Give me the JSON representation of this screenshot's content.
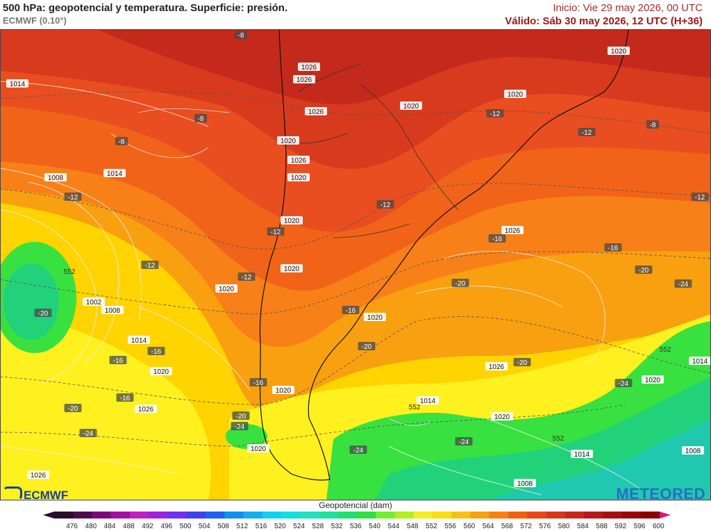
{
  "header": {
    "title": "500 hPa: geopotencial y temperatura. Superficie: presión.",
    "model": "ECMWF (0.10°)",
    "init": "Inicio: Vie 29 may 2026, 00 UTC",
    "valid": "Válido: Sáb 30 may 2026, 12 UTC (H+36)"
  },
  "colorbar": {
    "title": "Geopotencial (dam)",
    "ticks": [
      "476",
      "480",
      "484",
      "488",
      "492",
      "496",
      "500",
      "504",
      "508",
      "512",
      "516",
      "520",
      "524",
      "528",
      "532",
      "536",
      "540",
      "544",
      "548",
      "552",
      "556",
      "560",
      "564",
      "568",
      "572",
      "576",
      "580",
      "584",
      "588",
      "592",
      "596",
      "600"
    ],
    "colors": [
      "#2a0d2d",
      "#4d0a4d",
      "#7a0a7a",
      "#a010a0",
      "#c020c0",
      "#a020e0",
      "#7030f0",
      "#4040f0",
      "#2060f0",
      "#1090f0",
      "#10b0f0",
      "#10d0f0",
      "#10e0e0",
      "#20e0c0",
      "#20e0a0",
      "#20e070",
      "#30e040",
      "#70f030",
      "#b0f020",
      "#f0f020",
      "#f8e010",
      "#f8c010",
      "#f8a010",
      "#f88010",
      "#f06010",
      "#e84818",
      "#d83818",
      "#c82818",
      "#b81818",
      "#a81010",
      "#980808",
      "#880000"
    ]
  },
  "logos": {
    "left": "ECMWF",
    "right": "METEORED"
  },
  "pressure_labels": [
    {
      "text": "1014"
    },
    {
      "text": "1026"
    },
    {
      "text": "1026"
    },
    {
      "text": "1026"
    },
    {
      "text": "1020"
    },
    {
      "text": "1020"
    },
    {
      "text": "1020"
    },
    {
      "text": "1020"
    },
    {
      "text": "1026"
    },
    {
      "text": "1020"
    },
    {
      "text": "1014"
    },
    {
      "text": "1008"
    },
    {
      "text": "1020"
    },
    {
      "text": "1020"
    },
    {
      "text": "1020"
    },
    {
      "text": "1026"
    },
    {
      "text": "1002"
    },
    {
      "text": "1008"
    },
    {
      "text": "1014"
    },
    {
      "text": "1020"
    },
    {
      "text": "1026"
    },
    {
      "text": "1020"
    },
    {
      "text": "1026"
    },
    {
      "text": "1020"
    },
    {
      "text": "1014"
    },
    {
      "text": "1020"
    },
    {
      "text": "1020"
    },
    {
      "text": "1014"
    },
    {
      "text": "1008"
    },
    {
      "text": "1026"
    },
    {
      "text": "1020"
    },
    {
      "text": "1014"
    },
    {
      "text": "1008"
    }
  ],
  "temperature_labels": [
    {
      "text": "-8"
    },
    {
      "text": "-8"
    },
    {
      "text": "-8"
    },
    {
      "text": "-8"
    },
    {
      "text": "-12"
    },
    {
      "text": "-12"
    },
    {
      "text": "-12"
    },
    {
      "text": "-12"
    },
    {
      "text": "-12"
    },
    {
      "text": "-12"
    },
    {
      "text": "-12"
    },
    {
      "text": "-12"
    },
    {
      "text": "-16"
    },
    {
      "text": "-16"
    },
    {
      "text": "-16"
    },
    {
      "text": "-16"
    },
    {
      "text": "-16"
    },
    {
      "text": "-16"
    },
    {
      "text": "-16"
    },
    {
      "text": "-20"
    },
    {
      "text": "-20"
    },
    {
      "text": "-20"
    },
    {
      "text": "-20"
    },
    {
      "text": "-20"
    },
    {
      "text": "-20"
    },
    {
      "text": "-20"
    },
    {
      "text": "-24"
    },
    {
      "text": "-24"
    },
    {
      "text": "-24"
    },
    {
      "text": "-24"
    },
    {
      "text": "-24"
    },
    {
      "text": "-24"
    }
  ],
  "geopotential_labels": [
    {
      "text": "552"
    },
    {
      "text": "552"
    },
    {
      "text": "552"
    },
    {
      "text": "552"
    }
  ]
}
